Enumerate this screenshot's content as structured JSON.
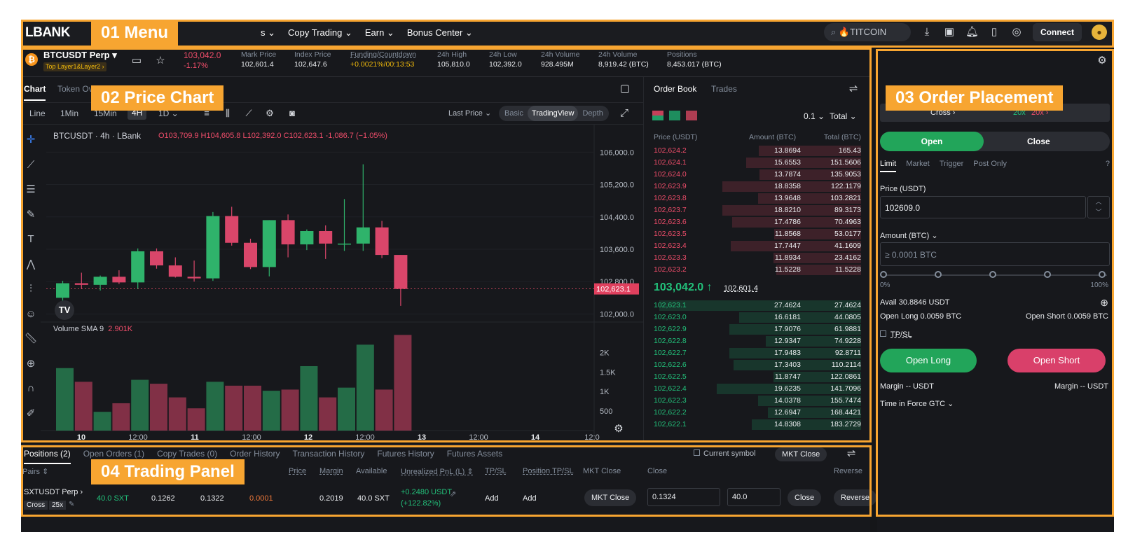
{
  "app": {
    "logo": "LBANK",
    "nav": [
      "s ⌄",
      "Copy Trading ⌄",
      "Earn ⌄",
      "Bonus Center ⌄"
    ],
    "search": "🔥TITCOIN",
    "connect": "Connect"
  },
  "labels": {
    "l1": "01 Menu",
    "l2": "02 Price Chart",
    "l3": "03 Order Placement",
    "l4": "04 Trading Panel"
  },
  "ticker": {
    "pair": "BTCUSDT Perp ▾",
    "tag1": "Top",
    "tag2": "Layer1&Layer2 ›",
    "price": "103,042.0",
    "change": "-1.17%",
    "fields": [
      {
        "l": "Mark Price",
        "v": "102,601.4"
      },
      {
        "l": "Index Price",
        "v": "102,647.6"
      },
      {
        "l": "Funding/Countdown",
        "v": "+0.0021%/00:13:53"
      },
      {
        "l": "24h High",
        "v": "105,810.0"
      },
      {
        "l": "24h Low",
        "v": "102,392.0"
      },
      {
        "l": "24h Volume",
        "v": "928.495M"
      },
      {
        "l": "24h Volume",
        "v": "8,919.42 (BTC)"
      },
      {
        "l": "Positions",
        "v": "8,453.017 (BTC)"
      }
    ]
  },
  "chart": {
    "tabs": [
      "Chart",
      "Token Ov"
    ],
    "intervals": [
      "Line",
      "1Min",
      "15Min",
      "4H",
      "1D ⌄"
    ],
    "last_price": "Last Price ⌄",
    "views": [
      "Basic",
      "TradingView",
      "Depth"
    ],
    "legend": "BTCUSDT · 4h · LBank",
    "ohlc": "O103,709.9  H104,605.8  L102,392.0  C102,623.1  -1,086.7 (−1.05%)",
    "yticks": [
      "106,000.0",
      "105,200.0",
      "104,400.0",
      "103,600.0",
      "102,800.0",
      "102,000.0"
    ],
    "ytick_vals": [
      106000,
      105200,
      104400,
      103600,
      102800,
      102000
    ],
    "price_tag": "102,623.1",
    "vol_label": "Volume SMA 9",
    "vol_val": "2.901K",
    "vol_ticks": [
      "2K",
      "1.5K",
      "1K",
      "500"
    ],
    "xticks": [
      "10",
      "12:00",
      "11",
      "12:00",
      "12",
      "12:00",
      "13",
      "12:00",
      "14",
      "12:0"
    ]
  },
  "chart_data": {
    "type": "candlestick",
    "ylim": [
      101800,
      106300
    ],
    "ylim_vol": [
      0,
      2600
    ],
    "candles": [
      [
        102400,
        102820,
        102180,
        102760
      ],
      [
        102760,
        103020,
        102620,
        102720
      ],
      [
        102720,
        102950,
        102580,
        102920
      ],
      [
        102920,
        103080,
        102740,
        102780
      ],
      [
        102780,
        103620,
        102620,
        103550
      ],
      [
        103550,
        103620,
        103120,
        103200
      ],
      [
        103200,
        103400,
        102900,
        102920
      ],
      [
        102920,
        103320,
        102800,
        102880
      ],
      [
        102880,
        104520,
        102820,
        104420
      ],
      [
        104420,
        104650,
        103690,
        103760
      ],
      [
        103760,
        103860,
        103110,
        103160
      ],
      [
        103160,
        104320,
        102930,
        104320
      ],
      [
        104320,
        104460,
        103400,
        103720
      ],
      [
        103720,
        104090,
        103580,
        104050
      ],
      [
        104050,
        104190,
        103360,
        103740
      ],
      [
        103740,
        104840,
        103560,
        103740
      ],
      [
        103740,
        105700,
        103560,
        104140
      ],
      [
        104140,
        104300,
        103380,
        103460
      ],
      [
        103460,
        103460,
        102200,
        102620
      ]
    ],
    "volume": [
      1600,
      1250,
      480,
      700,
      1300,
      1200,
      850,
      570,
      1250,
      1150,
      1150,
      1020,
      1050,
      1650,
      850,
      1100,
      2200,
      1050,
      2450
    ]
  },
  "book": {
    "tabs": [
      "Order Book",
      "Trades"
    ],
    "tick": "0.1 ⌄",
    "total": "Total ⌄",
    "cols": [
      "Price (USDT)",
      "Amount (BTC)",
      "Total (BTC)"
    ],
    "asks": [
      [
        "102,624.2",
        "13.8694",
        "165.43"
      ],
      [
        "102,624.1",
        "15.6553",
        "151.5606"
      ],
      [
        "102,624.0",
        "13.7874",
        "135.9053"
      ],
      [
        "102,623.9",
        "18.8358",
        "122.1179"
      ],
      [
        "102,623.8",
        "13.9648",
        "103.2821"
      ],
      [
        "102,623.7",
        "18.8210",
        "89.3173"
      ],
      [
        "102,623.6",
        "17.4786",
        "70.4963"
      ],
      [
        "102,623.5",
        "11.8568",
        "53.0177"
      ],
      [
        "102,623.4",
        "17.7447",
        "41.1609"
      ],
      [
        "102,623.3",
        "11.8934",
        "23.4162"
      ],
      [
        "102,623.2",
        "11.5228",
        "11.5228"
      ]
    ],
    "mid": "103,042.0 ↑",
    "mark": "102,601.4",
    "bids": [
      [
        "102,623.1",
        "27.4624",
        "27.4624"
      ],
      [
        "102,623.0",
        "16.6181",
        "44.0805"
      ],
      [
        "102,622.9",
        "17.9076",
        "61.9881"
      ],
      [
        "102,622.8",
        "12.9347",
        "74.9228"
      ],
      [
        "102,622.7",
        "17.9483",
        "92.8711"
      ],
      [
        "102,622.6",
        "17.3403",
        "110.2114"
      ],
      [
        "102,622.5",
        "11.8747",
        "122.0861"
      ],
      [
        "102,622.4",
        "19.6235",
        "141.7096"
      ],
      [
        "102,622.3",
        "14.0378",
        "155.7474"
      ],
      [
        "102,622.2",
        "12.6947",
        "168.4421"
      ],
      [
        "102,622.1",
        "14.8308",
        "183.2729"
      ]
    ]
  },
  "order": {
    "margin": "Cross ›",
    "lev1": "20x",
    "lev2": "20x ›",
    "open": "Open",
    "close": "Close",
    "types": [
      "Limit",
      "Market",
      "Trigger",
      "Post Only"
    ],
    "price_label": "Price (USDT)",
    "price_val": "102609.0",
    "amount_label": "Amount (BTC) ⌄",
    "amount_ph": "≥ 0.0001 BTC",
    "pct0": "0%",
    "pct100": "100%",
    "avail": "Avail 30.8846 USDT",
    "open_long": "Open Long 0.0059 BTC",
    "open_short": "Open Short 0.0059 BTC",
    "tpsl": "TP/SL",
    "btn_long": "Open Long",
    "btn_short": "Open Short",
    "margin_l": "Margin -- USDT",
    "margin_r": "Margin -- USDT",
    "tif": "Time in Force GTC ⌄"
  },
  "panel": {
    "tabs": [
      "Positions (2)",
      "Open Orders (1)",
      "Copy Trades (0)",
      "Order History",
      "Transaction History",
      "Futures History",
      "Futures Assets"
    ],
    "current": "Current symbol",
    "mktclose": "MKT Close",
    "headers": [
      "Pairs ⇕",
      "Price",
      "Margin",
      "Available",
      "Unrealized PnL (L) ⇕",
      "TP/SL",
      "Position TP/SL",
      "MKT Close",
      "Close",
      "Reverse"
    ],
    "row": {
      "pair": "SXTUSDT Perp ›",
      "mode": "Cross",
      "lev": "25x",
      "size": "40.0 SXT",
      "entry": "0.1262",
      "mark": "0.1322",
      "liq": "0.0001",
      "margin": "0.2019",
      "avail": "40.0 SXT",
      "pnl1": "+0.2480 USDT",
      "pnl2": "(+122.82%)",
      "tp": "Add",
      "ptp": "Add",
      "mkt": "MKT Close",
      "close_price": "0.1324",
      "close_qty": "40.0",
      "close": "Close",
      "reverse": "Reverse"
    }
  }
}
